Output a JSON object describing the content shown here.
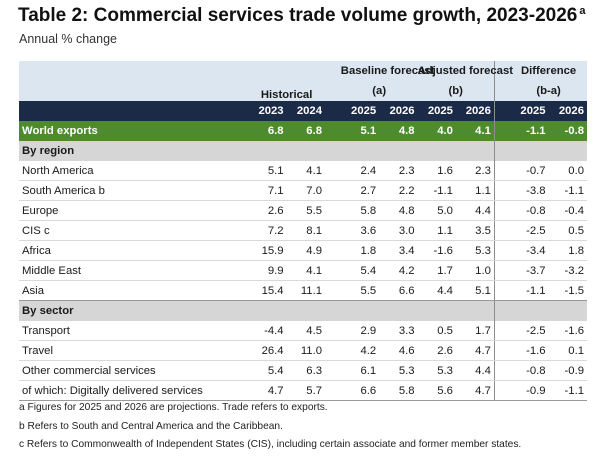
{
  "title": "Table 2: Commercial services trade volume growth, 2023-2026",
  "title_sup": "a",
  "subtitle": "Annual % change",
  "header": {
    "historical": "Historical",
    "baseline": "Baseline forecast",
    "baseline_sub": "(a)",
    "adjusted": "Adjusted forecast",
    "adjusted_sub": "(b)",
    "difference": "Difference",
    "difference_sub": "(b-a)",
    "years": [
      "2023",
      "2024",
      "2025",
      "2026",
      "2025",
      "2026",
      "2025",
      "2026"
    ]
  },
  "world": {
    "label": "World exports",
    "values": [
      "6.8",
      "6.8",
      "5.1",
      "4.8",
      "4.0",
      "4.1",
      "-1.1",
      "-0.8"
    ]
  },
  "sections": [
    {
      "label": "By region",
      "rows": [
        {
          "label": "North America",
          "values": [
            "5.1",
            "4.1",
            "2.4",
            "2.3",
            "1.6",
            "2.3",
            "-0.7",
            "0.0"
          ]
        },
        {
          "label": "South America b",
          "values": [
            "7.1",
            "7.0",
            "2.7",
            "2.2",
            "-1.1",
            "1.1",
            "-3.8",
            "-1.1"
          ]
        },
        {
          "label": "Europe",
          "values": [
            "2.6",
            "5.5",
            "5.8",
            "4.8",
            "5.0",
            "4.4",
            "-0.8",
            "-0.4"
          ]
        },
        {
          "label": "CIS c",
          "values": [
            "7.2",
            "8.1",
            "3.6",
            "3.0",
            "1.1",
            "3.5",
            "-2.5",
            "0.5"
          ]
        },
        {
          "label": "Africa",
          "values": [
            "15.9",
            "4.9",
            "1.8",
            "3.4",
            "-1.6",
            "5.3",
            "-3.4",
            "1.8"
          ]
        },
        {
          "label": "Middle East",
          "values": [
            "9.9",
            "4.1",
            "5.4",
            "4.2",
            "1.7",
            "1.0",
            "-3.7",
            "-3.2"
          ]
        },
        {
          "label": "Asia",
          "values": [
            "15.4",
            "11.1",
            "5.5",
            "6.6",
            "4.4",
            "5.1",
            "-1.1",
            "-1.5"
          ]
        }
      ]
    },
    {
      "label": "By sector",
      "rows": [
        {
          "label": "Transport",
          "values": [
            "-4.4",
            "4.5",
            "2.9",
            "3.3",
            "0.5",
            "1.7",
            "-2.5",
            "-1.6"
          ]
        },
        {
          "label": "Travel",
          "values": [
            "26.4",
            "11.0",
            "4.2",
            "4.6",
            "2.6",
            "4.7",
            "-1.6",
            "0.1"
          ]
        },
        {
          "label": "Other commercial services",
          "values": [
            "5.4",
            "6.3",
            "6.1",
            "5.3",
            "5.3",
            "4.4",
            "-0.8",
            "-0.9"
          ]
        },
        {
          "label": "of which: Digitally delivered services",
          "values": [
            "4.7",
            "5.7",
            "6.6",
            "5.8",
            "5.6",
            "4.7",
            "-0.9",
            "-1.1"
          ]
        }
      ]
    }
  ],
  "notes": [
    "a  Figures for 2025 and 2026 are projections. Trade refers to exports.",
    "b  Refers to South and Central America and the Caribbean.",
    "c  Refers to Commonwealth of Independent States (CIS), including certain associate and former member states."
  ]
}
